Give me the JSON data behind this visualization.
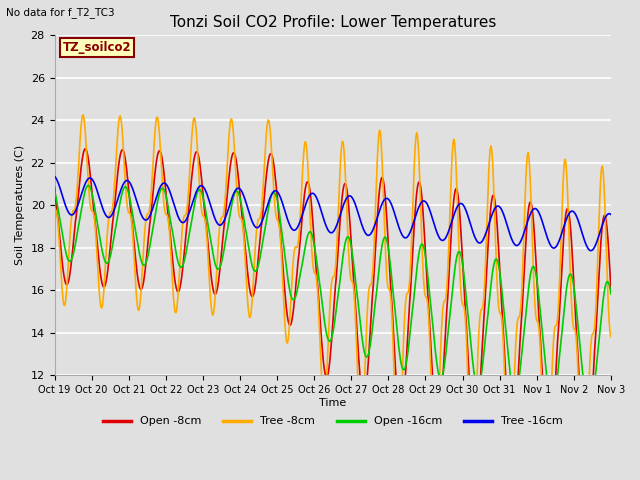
{
  "title": "Tonzi Soil CO2 Profile: Lower Temperatures",
  "subtitle": "No data for f_T2_TC3",
  "ylabel": "Soil Temperatures (C)",
  "xlabel": "Time",
  "ylim": [
    12,
    28
  ],
  "yticks": [
    12,
    14,
    16,
    18,
    20,
    22,
    24,
    26,
    28
  ],
  "xtick_labels": [
    "Oct 19",
    "Oct 20",
    "Oct 21",
    "Oct 22",
    "Oct 23",
    "Oct 24",
    "Oct 25",
    "Oct 26",
    "Oct 27",
    "Oct 28",
    "Oct 29",
    "Oct 30",
    "Oct 31",
    "Nov 1",
    "Nov 2",
    "Nov 3"
  ],
  "legend_labels": [
    "Open -8cm",
    "Tree -8cm",
    "Open -16cm",
    "Tree -16cm"
  ],
  "legend_colors": [
    "#dd0000",
    "#ffaa00",
    "#00cc00",
    "#0000ee"
  ],
  "annotation_label": "TZ_soilco2",
  "annotation_color": "#880000",
  "annotation_bg": "#ffffbb",
  "bg_color": "#e8e8e8",
  "grid_color": "#ffffff"
}
